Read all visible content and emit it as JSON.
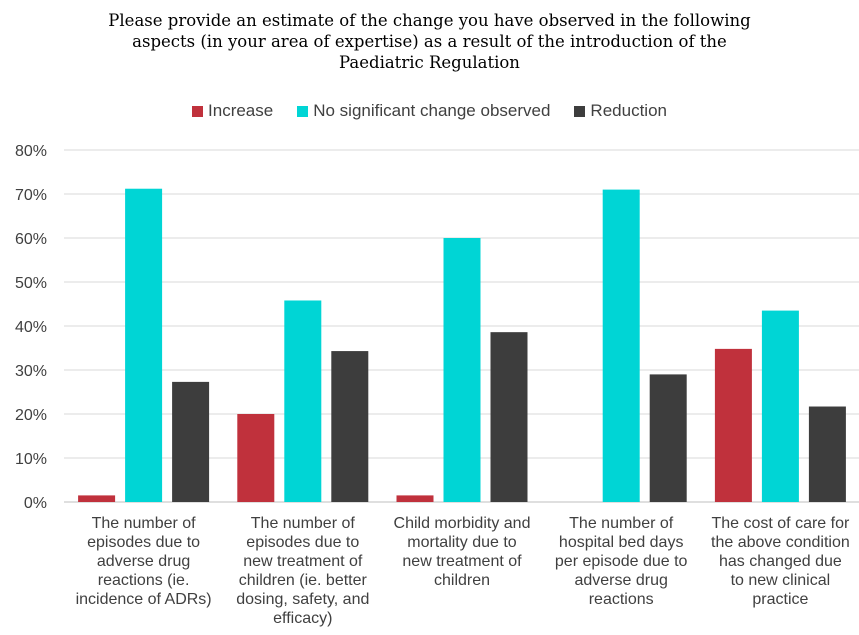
{
  "chart_data": {
    "type": "bar",
    "title_lines": [
      "Please provide an estimate of the change you have observed in the following",
      "aspects (in your area of expertise) as a result of the introduction of the",
      "Paediatric Regulation"
    ],
    "categories": [
      [
        "The number of",
        "episodes due to",
        "adverse drug",
        "reactions  (ie.",
        "incidence of ADRs)"
      ],
      [
        "The number of",
        "episodes due to",
        "new treatment of",
        "children (ie. better",
        "dosing, safety, and",
        "efficacy)"
      ],
      [
        "Child morbidity and",
        "mortality due to",
        "new treatment of",
        "children"
      ],
      [
        "The number of",
        "hospital bed days",
        "per episode due to",
        "adverse drug",
        "reactions"
      ],
      [
        "The cost of care for",
        "the above condition",
        "has changed due",
        "to new clinical",
        "practice"
      ]
    ],
    "series": [
      {
        "name": "Increase",
        "color": "#C0313C",
        "values": [
          1.5,
          20,
          1.5,
          0,
          34.8
        ]
      },
      {
        "name": "No significant change observed",
        "color": "#00D5D5",
        "values": [
          71.2,
          45.8,
          60,
          71,
          43.5
        ]
      },
      {
        "name": "Reduction",
        "color": "#3D3D3D",
        "values": [
          27.3,
          34.3,
          38.6,
          29,
          21.7
        ]
      }
    ],
    "y_ticks": [
      "0%",
      "10%",
      "20%",
      "30%",
      "40%",
      "50%",
      "60%",
      "70%",
      "80%"
    ],
    "ylim": [
      0,
      80
    ],
    "grid": true,
    "legend_position": "top-center"
  }
}
